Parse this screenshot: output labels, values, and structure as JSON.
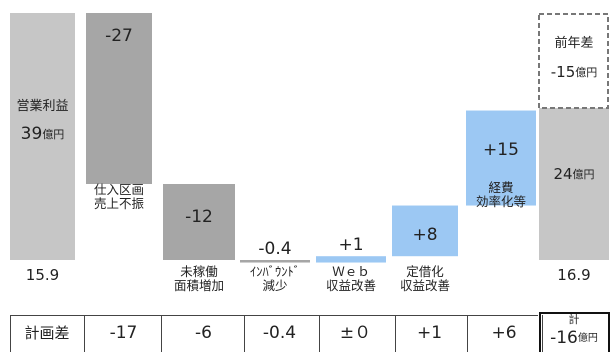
{
  "chart_data": {
    "type": "bar",
    "subtype": "waterfall",
    "unit": "億円",
    "categories": [
      {
        "label": "",
        "value": 39
      },
      {
        "label": "仕入区画\n売上不振",
        "value": -27
      },
      {
        "label": "未稼働\n面積増加",
        "value": -12
      },
      {
        "label": "ｲﾝﾊﾞｳﾝﾄﾞ\n減少",
        "value": -0.4
      },
      {
        "label": "Ｗｅｂ\n収益改善",
        "value": 1
      },
      {
        "label": "定借化\n収益改善",
        "value": 8
      },
      {
        "label": "経費\n効率化等",
        "value": 15
      },
      {
        "label": "",
        "value": 24
      }
    ],
    "bar_texts": [
      "",
      "-27",
      "-12",
      "-0.4",
      "+1",
      "+8",
      "+15",
      ""
    ],
    "start_bar": {
      "label": "営業利益",
      "value_text": "39",
      "unit": "億円"
    },
    "end_bar": {
      "value_text": "24",
      "unit": "億円"
    },
    "prior_year_diff": {
      "label": "前年差",
      "value_text": "-15",
      "unit": "億円",
      "value": -15
    },
    "bottom_values": [
      "15.9",
      "16.9"
    ],
    "plan_diff": {
      "label": "計画差",
      "values": [
        "-17",
        "-6",
        "-0.4",
        "±０",
        "+1",
        "+6"
      ],
      "total_label": "計",
      "total_value": "-16",
      "total_unit": "億円"
    },
    "colors": {
      "start_end": "#c6c6c6",
      "decrease": "#a6a6a6",
      "increase": "#9cc8f3",
      "text": "#222222",
      "border": "#444444"
    }
  }
}
